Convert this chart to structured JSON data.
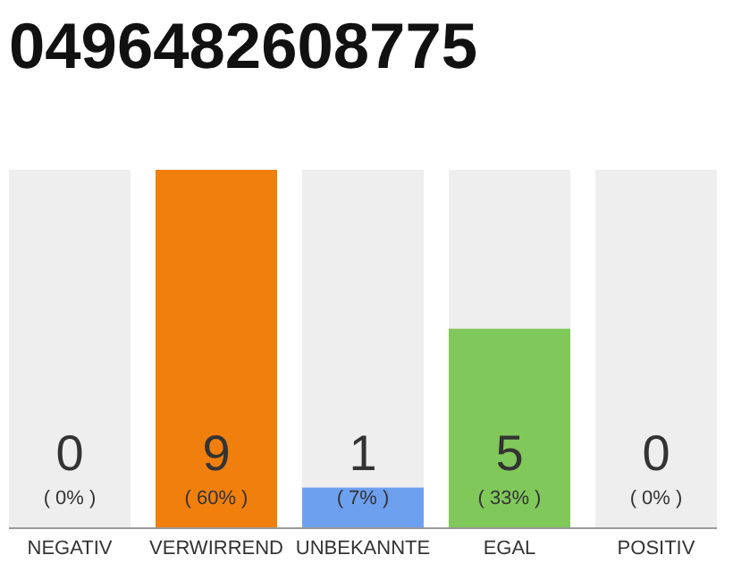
{
  "chart_data": {
    "type": "bar",
    "title": "0496482608775",
    "categories": [
      "NEGATIV",
      "VERWIRREND",
      "UNBEKANNTE",
      "EGAL",
      "POSITIV"
    ],
    "values": [
      0,
      9,
      1,
      5,
      0
    ],
    "colors": [
      "#f07f0e",
      "#f07f0e",
      "#6ea0f0",
      "#80c85a",
      "#80c85a"
    ],
    "ylim": [
      0,
      9
    ],
    "data_labels": true,
    "annotations": [
      "( 0% )",
      "( 60% )",
      "( 7% )",
      "( 33% )",
      "( 0% )"
    ],
    "bands": [
      {
        "axis": "x",
        "from": "NEGATIV",
        "to": "NEGATIV",
        "color": "#eeeeee"
      },
      {
        "axis": "x",
        "from": "UNBEKANNTE",
        "to": "UNBEKANNTE",
        "color": "#eeeeee"
      },
      {
        "axis": "x",
        "from": "EGAL",
        "to": "EGAL",
        "color": "#eeeeee"
      },
      {
        "axis": "x",
        "from": "POSITIV",
        "to": "POSITIV",
        "color": "#eeeeee"
      }
    ]
  }
}
